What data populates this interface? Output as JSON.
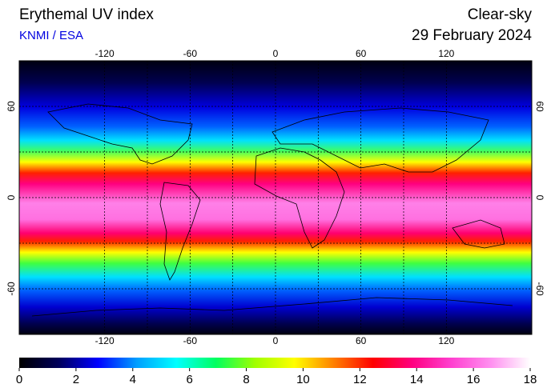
{
  "header": {
    "title": "Erythemal UV index",
    "source": "KNMI / ESA",
    "condition": "Clear-sky",
    "date": "29 February 2024"
  },
  "map": {
    "xlim": [
      -180,
      180
    ],
    "ylim": [
      -90,
      90
    ],
    "xticks": [
      -120,
      -60,
      0,
      60,
      120
    ],
    "yticks": [
      -60,
      0,
      60
    ],
    "grid": true
  },
  "colorbar": {
    "range": [
      0,
      18
    ],
    "ticks": [
      0,
      2,
      4,
      6,
      8,
      10,
      12,
      14,
      16,
      18
    ],
    "colors": [
      "#000000",
      "#00005a",
      "#0000ff",
      "#00a0ff",
      "#00ffff",
      "#00ff60",
      "#a0ff00",
      "#ffff00",
      "#ff8000",
      "#ff0000",
      "#ff0080",
      "#ff40d0",
      "#ff90f0",
      "#ffffff"
    ]
  }
}
